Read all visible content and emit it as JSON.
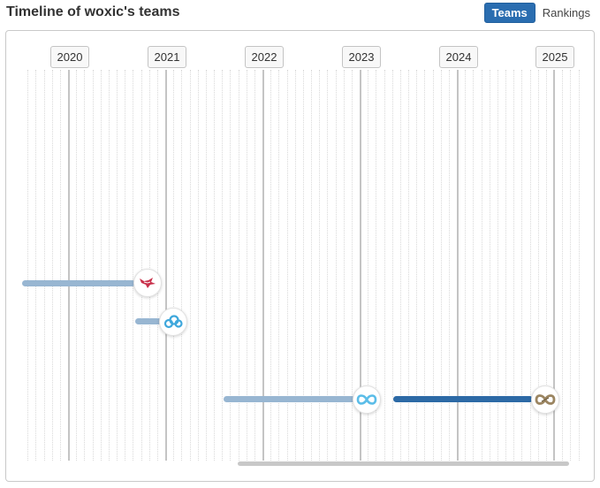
{
  "header": {
    "title": "Timeline of woxic's teams",
    "toggle": {
      "active_label": "Teams",
      "inactive_label": "Rankings"
    }
  },
  "timeline": {
    "years": [
      "2020",
      "2021",
      "2022",
      "2023",
      "2024",
      "2025"
    ],
    "stints": [
      {
        "team_icon": "mousesports-icon",
        "color": "#c8304a",
        "current": false
      },
      {
        "team_icon": "cloud9-icon",
        "color": "#3ea7dc",
        "current": false
      },
      {
        "team_icon": "endpoint-icon",
        "color": "#5bbde8",
        "current": false
      },
      {
        "team_icon": "golden-infinity-icon",
        "color": "#9b8561",
        "current": true
      }
    ]
  },
  "colors": {
    "accent": "#2a6db0",
    "past_bar": "#98b6d2",
    "current_bar": "#2d6aa6"
  }
}
